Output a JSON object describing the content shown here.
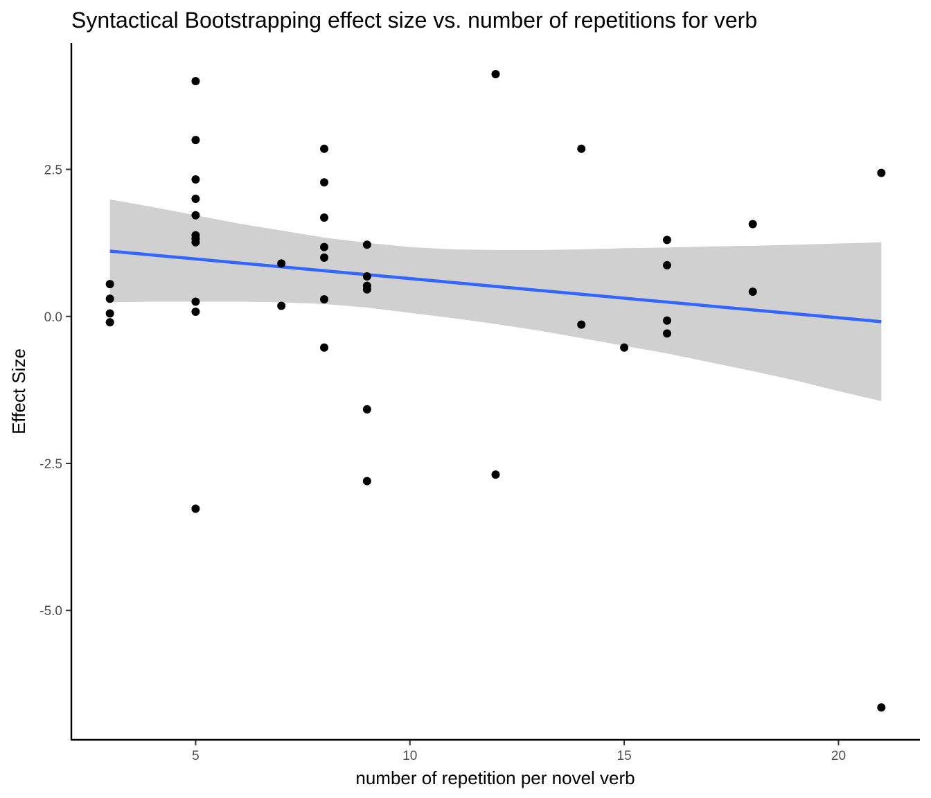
{
  "chart_data": {
    "type": "scatter",
    "title": "Syntactical Bootstrapping effect size vs. number of repetitions for verb",
    "xlabel": "number of repetition per novel verb",
    "ylabel": "Effect Size",
    "xlim": [
      2.1,
      21.9
    ],
    "ylim": [
      -7.2,
      4.65
    ],
    "x_ticks": [
      5,
      10,
      15,
      20
    ],
    "x_tick_labels": [
      "5",
      "10",
      "15",
      "20"
    ],
    "y_ticks": [
      2.5,
      0.0,
      -2.5,
      -5.0
    ],
    "y_tick_labels": [
      "2.5",
      "0.0",
      "-2.5",
      "-5.0"
    ],
    "grid": false,
    "legend": null,
    "colors": {
      "points": "#000000",
      "fit_line": "#3366ff",
      "ribbon": "#d0d0d0",
      "axis": "#000000",
      "tick_label": "#4d4d4d"
    },
    "points": [
      {
        "x": 3,
        "y": 0.55
      },
      {
        "x": 3,
        "y": 0.3
      },
      {
        "x": 3,
        "y": 0.05
      },
      {
        "x": 3,
        "y": -0.1
      },
      {
        "x": 5,
        "y": 4.0
      },
      {
        "x": 5,
        "y": 3.0
      },
      {
        "x": 5,
        "y": 2.33
      },
      {
        "x": 5,
        "y": 2.0
      },
      {
        "x": 5,
        "y": 1.72
      },
      {
        "x": 5,
        "y": 1.38
      },
      {
        "x": 5,
        "y": 1.32
      },
      {
        "x": 5,
        "y": 1.26
      },
      {
        "x": 5,
        "y": 0.25
      },
      {
        "x": 5,
        "y": 0.08
      },
      {
        "x": 5,
        "y": -3.27
      },
      {
        "x": 7,
        "y": 0.9
      },
      {
        "x": 7,
        "y": 0.18
      },
      {
        "x": 8,
        "y": 2.85
      },
      {
        "x": 8,
        "y": 2.28
      },
      {
        "x": 8,
        "y": 1.68
      },
      {
        "x": 8,
        "y": 1.18
      },
      {
        "x": 8,
        "y": 1.0
      },
      {
        "x": 8,
        "y": 0.29
      },
      {
        "x": 8,
        "y": -0.53
      },
      {
        "x": 9,
        "y": 1.22
      },
      {
        "x": 9,
        "y": 0.68
      },
      {
        "x": 9,
        "y": 0.52
      },
      {
        "x": 9,
        "y": 0.46
      },
      {
        "x": 9,
        "y": -1.58
      },
      {
        "x": 9,
        "y": -2.8
      },
      {
        "x": 12,
        "y": 4.12
      },
      {
        "x": 12,
        "y": -2.69
      },
      {
        "x": 14,
        "y": 2.85
      },
      {
        "x": 14,
        "y": -0.14
      },
      {
        "x": 15,
        "y": -0.53
      },
      {
        "x": 16,
        "y": 1.3
      },
      {
        "x": 16,
        "y": 0.87
      },
      {
        "x": 16,
        "y": -0.07
      },
      {
        "x": 16,
        "y": -0.29
      },
      {
        "x": 18,
        "y": 1.57
      },
      {
        "x": 18,
        "y": 0.42
      },
      {
        "x": 21,
        "y": 2.44
      },
      {
        "x": 21,
        "y": -6.65
      }
    ],
    "fit_line": {
      "x": [
        3,
        21
      ],
      "y": [
        1.11,
        -0.09
      ]
    },
    "confidence_band": {
      "x": [
        3,
        4,
        5,
        6,
        7,
        8,
        9,
        10,
        11,
        12,
        13,
        14,
        15,
        16,
        17,
        18,
        19,
        20,
        21
      ],
      "upper": [
        1.99,
        1.86,
        1.72,
        1.58,
        1.46,
        1.34,
        1.25,
        1.18,
        1.14,
        1.13,
        1.13,
        1.14,
        1.16,
        1.17,
        1.19,
        1.2,
        1.22,
        1.24,
        1.26
      ],
      "lower": [
        0.24,
        0.25,
        0.25,
        0.25,
        0.24,
        0.21,
        0.15,
        0.06,
        -0.03,
        -0.13,
        -0.24,
        -0.37,
        -0.5,
        -0.63,
        -0.78,
        -0.93,
        -1.09,
        -1.27,
        -1.44
      ]
    }
  }
}
